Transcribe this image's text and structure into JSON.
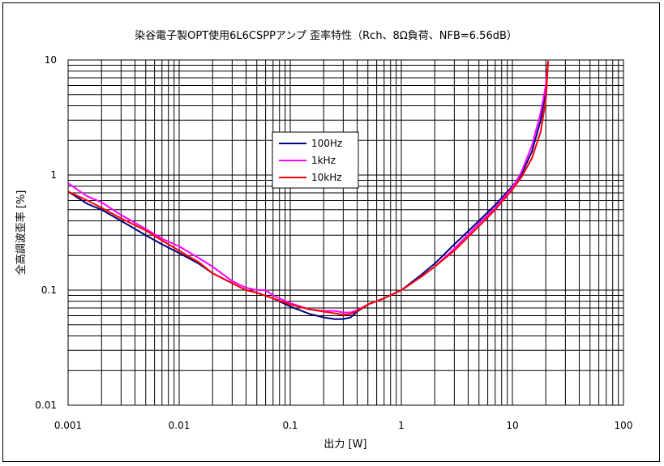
{
  "chart_data": {
    "type": "line",
    "title": "染谷電子製OPT使用6L6CSPPアンプ 歪率特性（Rch、8Ω負荷、NFB=6.56dB）",
    "xlabel": "出力 [W]",
    "ylabel": "全高調波歪率 [%]",
    "xscale": "log",
    "yscale": "log",
    "xlim": [
      0.001,
      100
    ],
    "ylim": [
      0.01,
      10
    ],
    "xticks": [
      "0.001",
      "0.01",
      "0.1",
      "1",
      "10",
      "100"
    ],
    "yticks": [
      "0.01",
      "0.1",
      "1",
      "10"
    ],
    "grid": true,
    "legend_position": "center",
    "series": [
      {
        "name": "100Hz",
        "color": "#000080",
        "x": [
          0.001,
          0.0015,
          0.002,
          0.003,
          0.005,
          0.007,
          0.01,
          0.015,
          0.02,
          0.03,
          0.04,
          0.05,
          0.07,
          0.1,
          0.15,
          0.2,
          0.25,
          0.3,
          0.35,
          0.4,
          0.5,
          0.7,
          1,
          1.5,
          2,
          3,
          5,
          7,
          10,
          12,
          15,
          18,
          20,
          21
        ],
        "y": [
          0.72,
          0.56,
          0.5,
          0.4,
          0.3,
          0.25,
          0.21,
          0.17,
          0.14,
          0.115,
          0.1,
          0.095,
          0.085,
          0.072,
          0.062,
          0.058,
          0.056,
          0.056,
          0.058,
          0.065,
          0.075,
          0.085,
          0.1,
          0.135,
          0.17,
          0.25,
          0.4,
          0.55,
          0.8,
          1.0,
          1.6,
          3.0,
          5.5,
          9.8
        ]
      },
      {
        "name": "1kHz",
        "color": "#ff00ff",
        "x": [
          0.001,
          0.0015,
          0.002,
          0.003,
          0.005,
          0.007,
          0.01,
          0.015,
          0.02,
          0.03,
          0.04,
          0.05,
          0.06,
          0.07,
          0.1,
          0.15,
          0.2,
          0.25,
          0.3,
          0.35,
          0.4,
          0.5,
          0.7,
          1,
          1.5,
          2,
          3,
          5,
          7,
          10,
          12,
          15,
          18,
          20,
          21
        ],
        "y": [
          0.85,
          0.65,
          0.58,
          0.45,
          0.34,
          0.28,
          0.24,
          0.19,
          0.16,
          0.12,
          0.105,
          0.1,
          0.1,
          0.09,
          0.077,
          0.068,
          0.066,
          0.066,
          0.064,
          0.064,
          0.067,
          0.075,
          0.085,
          0.1,
          0.13,
          0.16,
          0.23,
          0.38,
          0.52,
          0.78,
          1.05,
          1.8,
          3.5,
          6.0,
          9.8
        ]
      },
      {
        "name": "10kHz",
        "color": "#ff0000",
        "x": [
          0.001,
          0.0015,
          0.002,
          0.003,
          0.005,
          0.007,
          0.01,
          0.015,
          0.02,
          0.03,
          0.04,
          0.05,
          0.07,
          0.1,
          0.15,
          0.2,
          0.25,
          0.3,
          0.35,
          0.4,
          0.5,
          0.7,
          1,
          1.5,
          2,
          3,
          5,
          7,
          10,
          12,
          15,
          18,
          20,
          21
        ],
        "y": [
          0.72,
          0.6,
          0.52,
          0.42,
          0.33,
          0.27,
          0.22,
          0.175,
          0.14,
          0.115,
          0.1,
          0.095,
          0.085,
          0.075,
          0.068,
          0.065,
          0.063,
          0.061,
          0.062,
          0.066,
          0.075,
          0.085,
          0.1,
          0.13,
          0.16,
          0.22,
          0.36,
          0.5,
          0.75,
          0.95,
          1.4,
          2.4,
          4.5,
          9.8
        ]
      }
    ]
  }
}
